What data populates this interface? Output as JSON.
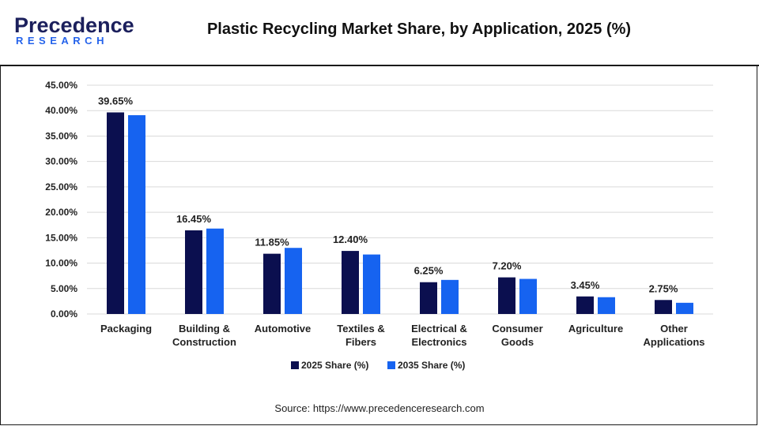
{
  "logo": {
    "main": "Precedence",
    "sub": "RESEARCH"
  },
  "chart_data": {
    "type": "bar",
    "title": "Plastic Recycling Market Share, by Application, 2025 (%)",
    "categories": [
      [
        "Packaging"
      ],
      [
        "Building &",
        "Construction"
      ],
      [
        "Automotive"
      ],
      [
        "Textiles &",
        "Fibers"
      ],
      [
        "Electrical &",
        "Electronics"
      ],
      [
        "Consumer",
        "Goods"
      ],
      [
        "Agriculture"
      ],
      [
        "Other",
        "Applications"
      ]
    ],
    "series": [
      {
        "name": "2025 Share (%)",
        "color": "#0b0f4f",
        "values": [
          39.65,
          16.45,
          11.85,
          12.4,
          6.25,
          7.2,
          3.45,
          2.75
        ],
        "labels": [
          "39.65%",
          "16.45%",
          "11.85%",
          "12.40%",
          "6.25%",
          "7.20%",
          "3.45%",
          "2.75%"
        ]
      },
      {
        "name": "2035 Share (%)",
        "color": "#1663f0",
        "values": [
          39.1,
          16.8,
          13.0,
          11.7,
          6.7,
          6.9,
          3.3,
          2.2
        ]
      }
    ],
    "ylim": [
      0,
      45
    ],
    "yticks": [
      "0.00%",
      "5.00%",
      "10.00%",
      "15.00%",
      "20.00%",
      "25.00%",
      "30.00%",
      "35.00%",
      "40.00%",
      "45.00%"
    ],
    "xlabel": "",
    "ylabel": "",
    "grid": true,
    "legend_position": "bottom"
  },
  "source": "Source: https://www.precedenceresearch.com"
}
